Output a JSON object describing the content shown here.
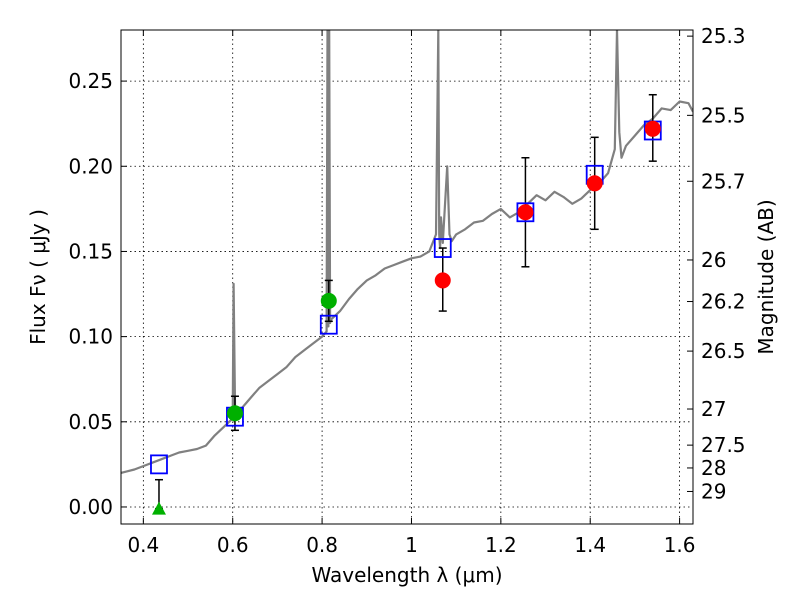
{
  "chart_data": {
    "type": "scatter",
    "title": "",
    "xlabel": "Wavelength  λ (μm)",
    "ylabel": "Flux  Fν ( μJy )",
    "y2label": "Magnitude (AB)",
    "xlim": [
      0.35,
      1.63
    ],
    "ylim": [
      -0.01,
      0.28
    ],
    "grid": true,
    "x_ticks": [
      0.4,
      0.6,
      0.8,
      1.0,
      1.2,
      1.4,
      1.6
    ],
    "x_tick_labels": [
      "0.4",
      "0.6",
      "0.8",
      "1",
      "1.2",
      "1.4",
      "1.6"
    ],
    "y_ticks": [
      0.0,
      0.05,
      0.1,
      0.15,
      0.2,
      0.25
    ],
    "y_tick_labels": [
      "0.00",
      "0.05",
      "0.10",
      "0.15",
      "0.20",
      "0.25"
    ],
    "mag_ticks": [
      {
        "label": "25.3",
        "flux": 0.2764
      },
      {
        "label": "25.5",
        "flux": 0.2299
      },
      {
        "label": "25.7",
        "flux": 0.1912
      },
      {
        "label": "26",
        "flux": 0.145
      },
      {
        "label": "26.2",
        "flux": 0.1206
      },
      {
        "label": "26.5",
        "flux": 0.0915
      },
      {
        "label": "27",
        "flux": 0.0575
      },
      {
        "label": "27.5",
        "flux": 0.0363
      },
      {
        "label": "28",
        "flux": 0.0229
      },
      {
        "label": "29",
        "flux": 0.0091
      }
    ],
    "model_sed": {
      "name": "model spectrum",
      "color": "#808080",
      "x": [
        0.35,
        0.38,
        0.4,
        0.42,
        0.44,
        0.46,
        0.48,
        0.5,
        0.52,
        0.54,
        0.56,
        0.58,
        0.6,
        0.602,
        0.605,
        0.608,
        0.61,
        0.62,
        0.63,
        0.64,
        0.66,
        0.68,
        0.7,
        0.72,
        0.74,
        0.76,
        0.78,
        0.8,
        0.81,
        0.812,
        0.814,
        0.816,
        0.818,
        0.82,
        0.84,
        0.86,
        0.88,
        0.9,
        0.92,
        0.94,
        0.96,
        0.98,
        1.0,
        1.02,
        1.04,
        1.055,
        1.06,
        1.062,
        1.064,
        1.066,
        1.07,
        1.08,
        1.085,
        1.09,
        1.1,
        1.12,
        1.14,
        1.16,
        1.18,
        1.2,
        1.22,
        1.24,
        1.26,
        1.28,
        1.3,
        1.32,
        1.34,
        1.36,
        1.38,
        1.4,
        1.42,
        1.44,
        1.455,
        1.46,
        1.465,
        1.47,
        1.48,
        1.5,
        1.52,
        1.54,
        1.56,
        1.58,
        1.6,
        1.62,
        1.63
      ],
      "y": [
        0.02,
        0.022,
        0.024,
        0.026,
        0.028,
        0.03,
        0.032,
        0.033,
        0.034,
        0.036,
        0.042,
        0.047,
        0.052,
        0.131,
        0.06,
        0.052,
        0.055,
        0.058,
        0.061,
        0.064,
        0.07,
        0.074,
        0.078,
        0.082,
        0.088,
        0.092,
        0.096,
        0.1,
        0.103,
        0.28,
        0.106,
        0.28,
        0.108,
        0.11,
        0.115,
        0.122,
        0.128,
        0.133,
        0.136,
        0.14,
        0.142,
        0.144,
        0.146,
        0.147,
        0.15,
        0.16,
        0.28,
        0.16,
        0.152,
        0.17,
        0.155,
        0.2,
        0.16,
        0.156,
        0.16,
        0.163,
        0.167,
        0.168,
        0.172,
        0.175,
        0.17,
        0.173,
        0.178,
        0.183,
        0.18,
        0.185,
        0.182,
        0.178,
        0.181,
        0.186,
        0.19,
        0.196,
        0.21,
        0.28,
        0.22,
        0.205,
        0.212,
        0.218,
        0.224,
        0.228,
        0.234,
        0.233,
        0.238,
        0.237,
        0.232
      ]
    },
    "series": [
      {
        "name": "model photometry",
        "marker": "open-square",
        "color": "#0000ff",
        "points": [
          {
            "x": 0.435,
            "y": 0.025
          },
          {
            "x": 0.605,
            "y": 0.053
          },
          {
            "x": 0.815,
            "y": 0.107
          },
          {
            "x": 1.07,
            "y": 0.152
          },
          {
            "x": 1.255,
            "y": 0.173
          },
          {
            "x": 1.41,
            "y": 0.195
          },
          {
            "x": 1.54,
            "y": 0.221
          }
        ]
      },
      {
        "name": "observed (green)",
        "marker": "circle",
        "color": "#00b000",
        "points": [
          {
            "x": 0.605,
            "y": 0.055,
            "err_lo": 0.045,
            "err_hi": 0.065
          },
          {
            "x": 0.815,
            "y": 0.121,
            "err_lo": 0.109,
            "err_hi": 0.133
          }
        ]
      },
      {
        "name": "observed (red)",
        "marker": "circle",
        "color": "#ff0000",
        "points": [
          {
            "x": 1.07,
            "y": 0.133,
            "err_lo": 0.115,
            "err_hi": 0.152
          },
          {
            "x": 1.255,
            "y": 0.173,
            "err_lo": 0.141,
            "err_hi": 0.205
          },
          {
            "x": 1.41,
            "y": 0.19,
            "err_lo": 0.163,
            "err_hi": 0.217
          },
          {
            "x": 1.54,
            "y": 0.222,
            "err_lo": 0.203,
            "err_hi": 0.242
          }
        ]
      },
      {
        "name": "upper limit",
        "marker": "triangle",
        "color": "#00b000",
        "points": [
          {
            "x": 0.435,
            "y": -0.001,
            "err_lo": -0.001,
            "err_hi": 0.016
          }
        ]
      }
    ]
  }
}
